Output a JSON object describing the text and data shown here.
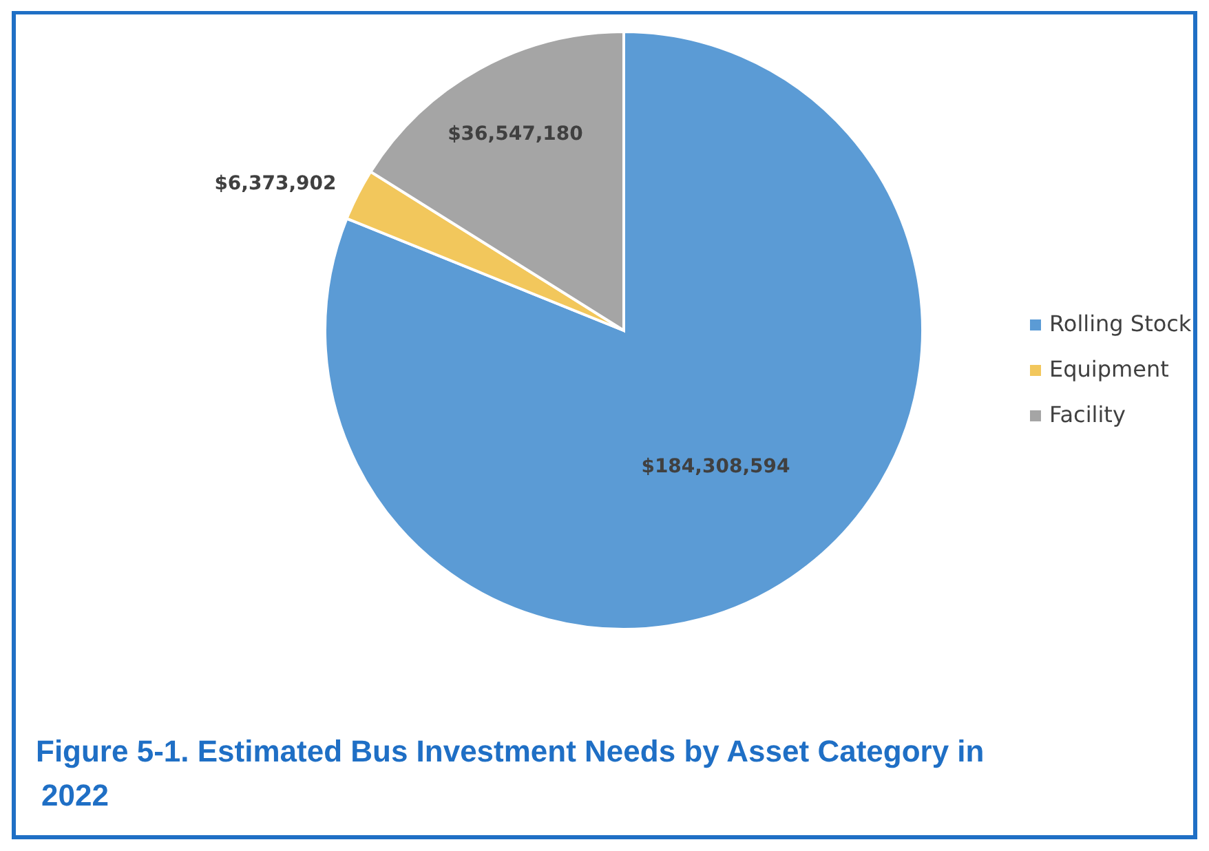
{
  "chart_data": {
    "type": "pie",
    "title": "Figure 5-1. Estimated Bus Investment Needs by Asset Category in 2022",
    "categories": [
      "Rolling Stock",
      "Equipment",
      "Facility"
    ],
    "values": [
      184308594,
      6373902,
      36547180
    ],
    "colors": [
      "#5b9bd5",
      "#f2c75c",
      "#a5a5a5"
    ],
    "value_labels": [
      "$184,308,594",
      "$6,373,902",
      "$36,547,180"
    ],
    "legend": "right"
  }
}
